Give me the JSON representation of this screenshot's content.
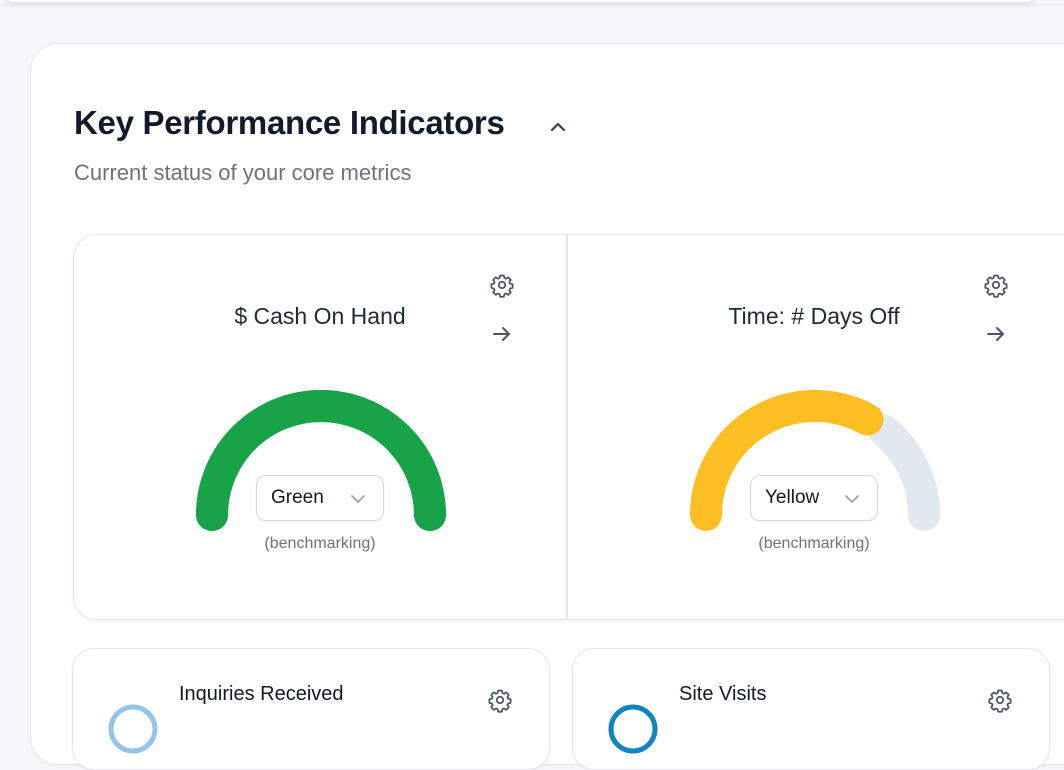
{
  "panel": {
    "title": "Key Performance Indicators",
    "subtitle": "Current status of your core metrics"
  },
  "kpis": [
    {
      "title": "$ Cash On Hand",
      "status": "Green",
      "note": "(benchmarking)",
      "level": 1.0,
      "color": "#18a349",
      "track_color": "#e2e8f0"
    },
    {
      "title": "Time: # Days Off",
      "status": "Yellow",
      "note": "(benchmarking)",
      "level": 0.66,
      "color": "#fbbf24",
      "track_color": "#e2e8f0"
    }
  ],
  "metrics": [
    {
      "title": "Inquiries Received",
      "ring_color": "#93c5e8"
    },
    {
      "title": "Site Visits",
      "ring_color": "#1283c4"
    }
  ],
  "icons": {
    "collapse": "chevron-up-icon",
    "settings": "gear-icon",
    "open": "arrow-right-icon",
    "dropdown": "chevron-down-icon"
  }
}
